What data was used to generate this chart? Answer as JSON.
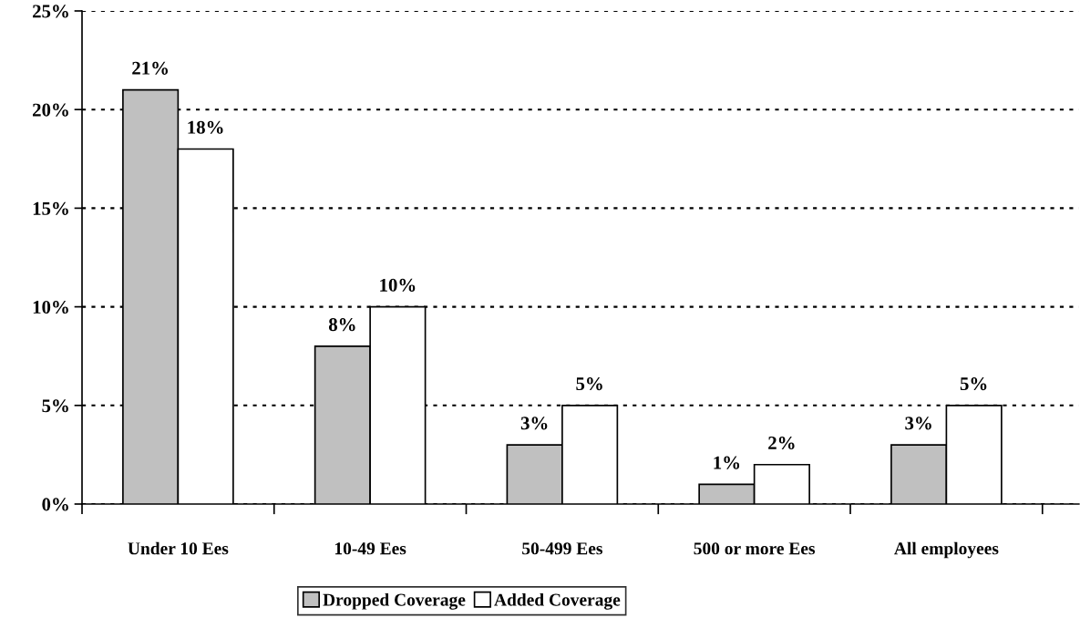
{
  "chart_data": {
    "type": "bar",
    "categories": [
      "Under 10 Ees",
      "10-49 Ees",
      "50-499 Ees",
      "500 or more Ees",
      "All employees"
    ],
    "series": [
      {
        "name": "Dropped Coverage",
        "color": "#c0c0c0",
        "values": [
          21,
          8,
          3,
          1,
          3
        ],
        "value_labels": [
          "21%",
          "8%",
          "3%",
          "1%",
          "3%"
        ]
      },
      {
        "name": "Added Coverage",
        "color": "#ffffff",
        "values": [
          18,
          10,
          5,
          2,
          5
        ],
        "value_labels": [
          "18%",
          "10%",
          "5%",
          "2%",
          "5%"
        ]
      }
    ],
    "ylim": [
      0,
      25
    ],
    "yticks": [
      {
        "value": 0,
        "label": "0%"
      },
      {
        "value": 5,
        "label": "5%"
      },
      {
        "value": 10,
        "label": "10%"
      },
      {
        "value": 15,
        "label": "15%"
      },
      {
        "value": 20,
        "label": "20%"
      },
      {
        "value": 25,
        "label": "25%"
      }
    ],
    "grid": "y",
    "legend": "bottom"
  }
}
